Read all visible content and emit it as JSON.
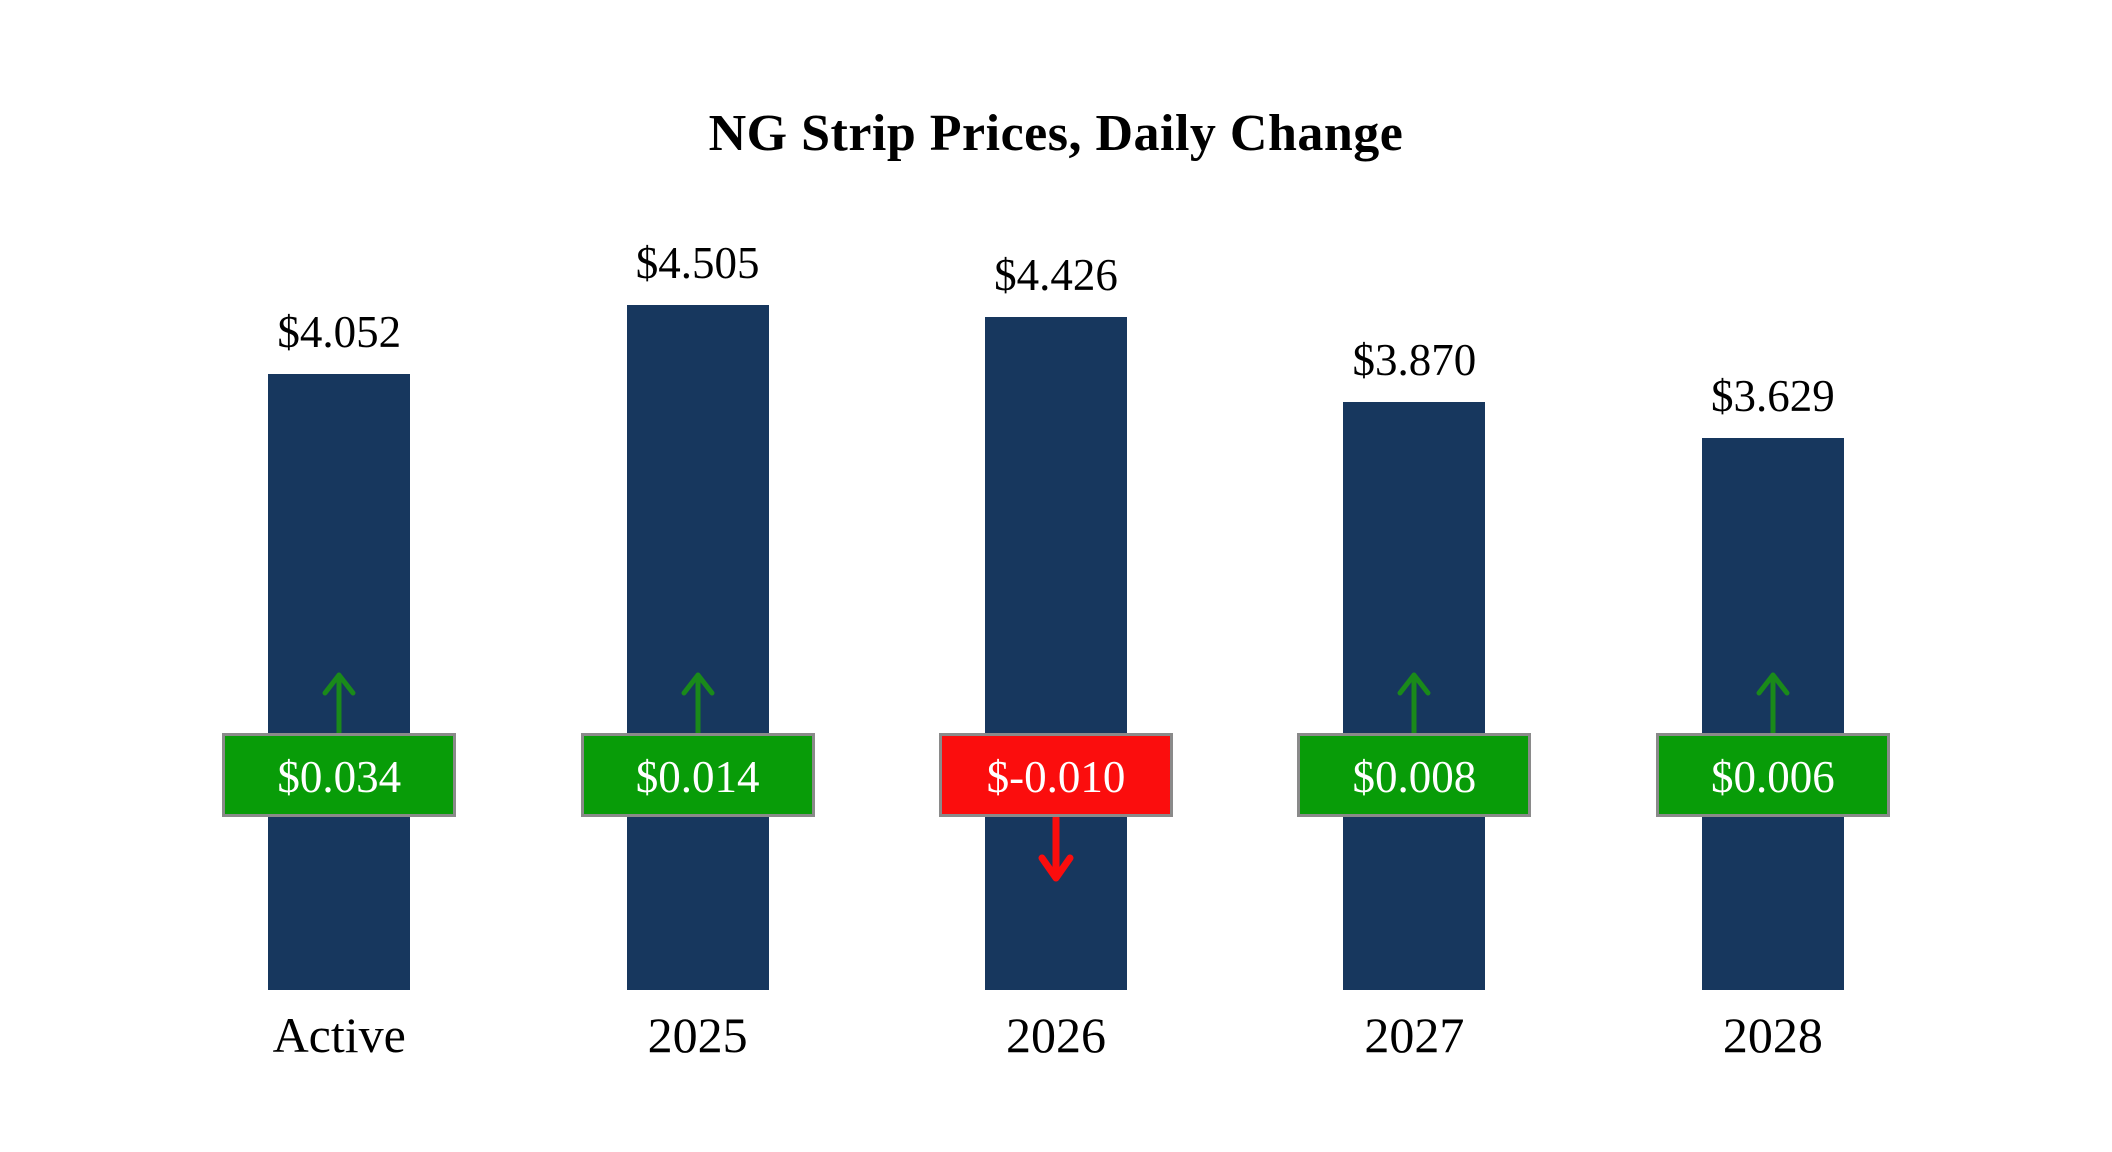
{
  "title": "NG Strip Prices, Daily Change",
  "chart_data": {
    "type": "bar",
    "title": "NG Strip Prices, Daily Change",
    "categories": [
      "Active",
      "2025",
      "2026",
      "2027",
      "2028"
    ],
    "series": [
      {
        "name": "Strip Price",
        "values": [
          4.052,
          4.505,
          4.426,
          3.87,
          3.629
        ]
      },
      {
        "name": "Daily Change",
        "values": [
          0.034,
          0.014,
          -0.01,
          0.008,
          0.006
        ]
      }
    ],
    "value_labels": [
      "$4.052",
      "$4.505",
      "$4.426",
      "$3.870",
      "$3.629"
    ],
    "change_labels": [
      "$0.034",
      "$0.014",
      "$-0.010",
      "$0.008",
      "$0.006"
    ],
    "xlabel": "",
    "ylabel": "",
    "ylim": [
      0,
      4.6
    ],
    "grid": false,
    "axes_visible": false,
    "legend_position": "none",
    "colors": {
      "bar": "#17375E",
      "change_up_badge": "#089c08",
      "change_down_badge": "#fb0d0d",
      "up_arrow": "#1a8a1a",
      "down_arrow": "#fb0d0d",
      "badge_border": "#8a8a8a",
      "badge_text": "#ffffff",
      "label_text": "#000000"
    },
    "icons": [
      "up-arrow-icon",
      "down-arrow-icon"
    ]
  }
}
